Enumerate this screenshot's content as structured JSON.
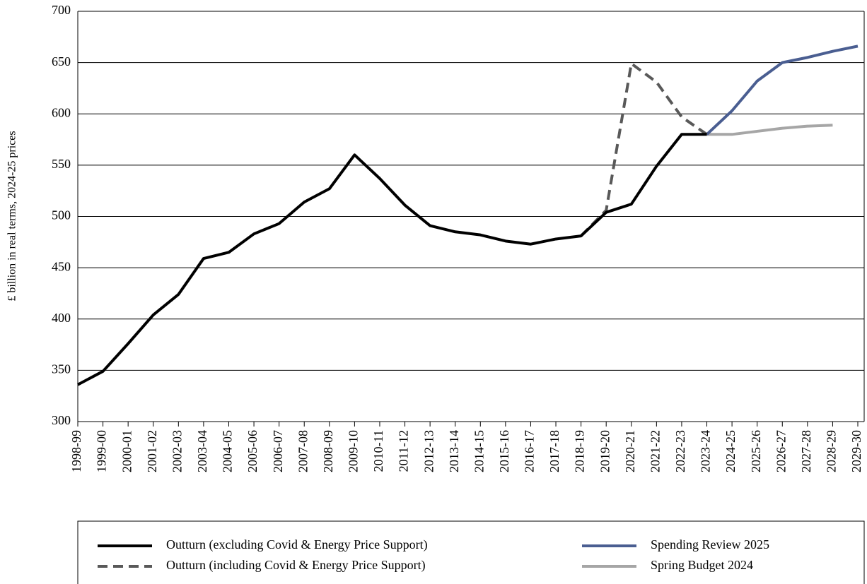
{
  "chart_data": {
    "type": "line",
    "ylabel": "£ billion in real terms, 2024-25 prices",
    "categories": [
      "1998-99",
      "1999-00",
      "2000-01",
      "2001-02",
      "2002-03",
      "2003-04",
      "2004-05",
      "2005-06",
      "2006-07",
      "2007-08",
      "2008-09",
      "2009-10",
      "2010-11",
      "2011-12",
      "2012-13",
      "2013-14",
      "2014-15",
      "2015-16",
      "2016-17",
      "2017-18",
      "2018-19",
      "2019-20",
      "2020-21",
      "2021-22",
      "2022-23",
      "2023-24",
      "2024-25",
      "2025-26",
      "2026-27",
      "2027-28",
      "2028-29",
      "2029-30"
    ],
    "series": [
      {
        "name": "Spring Budget 2024",
        "color": "#a6a6a6",
        "dash": false,
        "values": [
          null,
          null,
          null,
          null,
          null,
          null,
          null,
          null,
          null,
          null,
          null,
          null,
          null,
          null,
          null,
          null,
          null,
          null,
          null,
          null,
          null,
          null,
          null,
          null,
          null,
          580,
          580,
          583,
          586,
          588,
          589,
          null
        ]
      },
      {
        "name": "Spending Review 2025",
        "color": "#4a5e91",
        "dash": false,
        "values": [
          null,
          null,
          null,
          null,
          null,
          null,
          null,
          null,
          null,
          null,
          null,
          null,
          null,
          null,
          null,
          null,
          null,
          null,
          null,
          null,
          null,
          null,
          null,
          null,
          null,
          580,
          603,
          632,
          650,
          655,
          661,
          666
        ]
      },
      {
        "name": "Outturn (including Covid & Energy Price Support)",
        "color": "#595959",
        "dash": true,
        "values": [
          null,
          null,
          null,
          null,
          null,
          null,
          null,
          null,
          null,
          null,
          null,
          null,
          null,
          null,
          null,
          null,
          null,
          null,
          null,
          null,
          481,
          506,
          649,
          631,
          597,
          580,
          null,
          null,
          null,
          null,
          null,
          null
        ]
      },
      {
        "name": "Outturn (excluding Covid & Energy Price Support)",
        "color": "#000000",
        "dash": false,
        "values": [
          336,
          349,
          376,
          404,
          424,
          459,
          465,
          483,
          493,
          514,
          527,
          560,
          537,
          511,
          491,
          485,
          482,
          476,
          473,
          478,
          481,
          504,
          512,
          549,
          580,
          580,
          null,
          null,
          null,
          null,
          null,
          null
        ]
      }
    ],
    "ylim": [
      300,
      700
    ],
    "yticks": [
      300,
      350,
      400,
      450,
      500,
      550,
      600,
      650,
      700
    ],
    "grid": true
  }
}
